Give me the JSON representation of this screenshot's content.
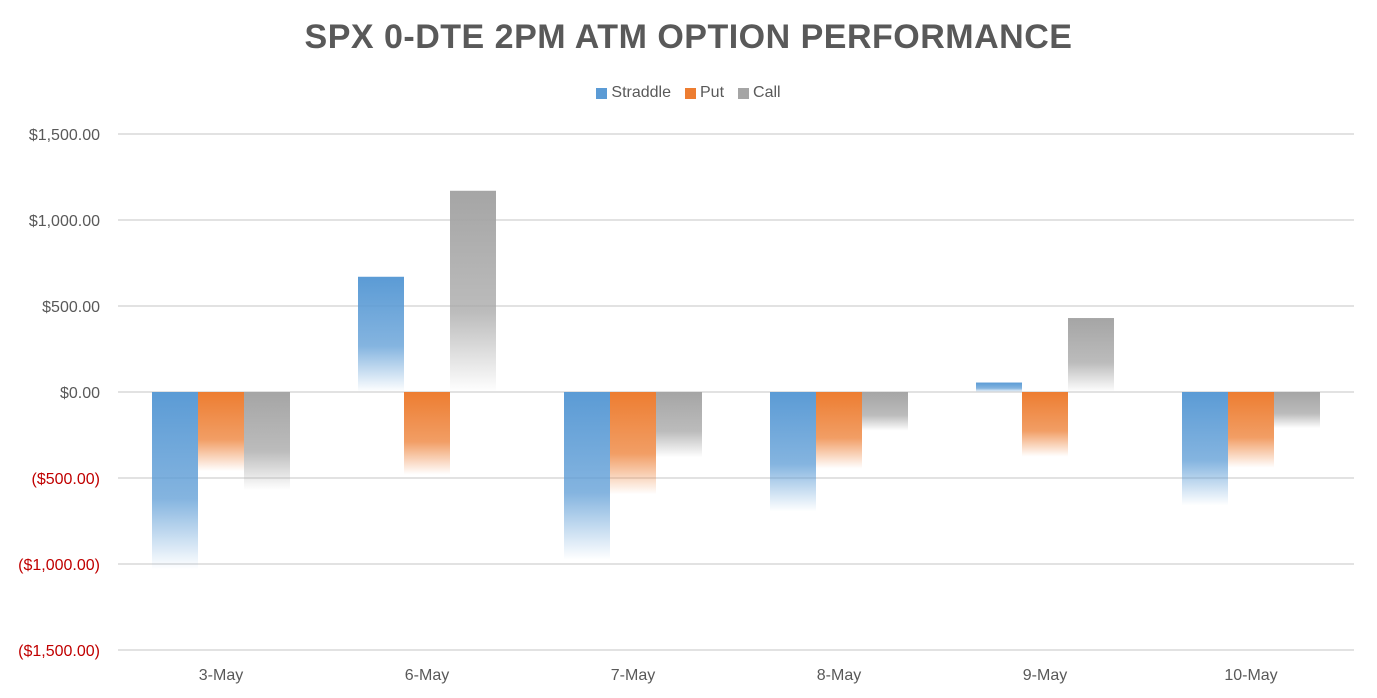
{
  "chart_data": {
    "type": "bar",
    "title": "SPX 0-DTE 2PM ATM OPTION PERFORMANCE",
    "categories": [
      "3-May",
      "6-May",
      "7-May",
      "8-May",
      "9-May",
      "10-May"
    ],
    "series": [
      {
        "name": "Straddle",
        "values": [
          -1030,
          670,
          -975,
          -695,
          55,
          -660
        ],
        "color": "#5B9BD5"
      },
      {
        "name": "Put",
        "values": [
          -460,
          -480,
          -595,
          -445,
          -375,
          -440
        ],
        "color": "#ED7D31"
      },
      {
        "name": "Call",
        "values": [
          -570,
          1170,
          -380,
          -225,
          430,
          -210
        ],
        "color": "#A5A5A5"
      }
    ],
    "y_ticks": [
      {
        "value": 1500,
        "label": "$1,500.00",
        "negative": false
      },
      {
        "value": 1000,
        "label": "$1,000.00",
        "negative": false
      },
      {
        "value": 500,
        "label": "$500.00",
        "negative": false
      },
      {
        "value": 0,
        "label": "$0.00",
        "negative": false
      },
      {
        "value": -500,
        "label": "($500.00)",
        "negative": true
      },
      {
        "value": -1000,
        "label": "($1,000.00)",
        "negative": true
      },
      {
        "value": -1500,
        "label": "($1,500.00)",
        "negative": true
      }
    ],
    "ylim": [
      -1500,
      1500
    ],
    "xlabel": "",
    "ylabel": "",
    "grid": true,
    "legend_position": "top",
    "negative_label_color": "#C00000",
    "axis_label_color": "#595959",
    "gridline_color": "#D9D9D9"
  }
}
